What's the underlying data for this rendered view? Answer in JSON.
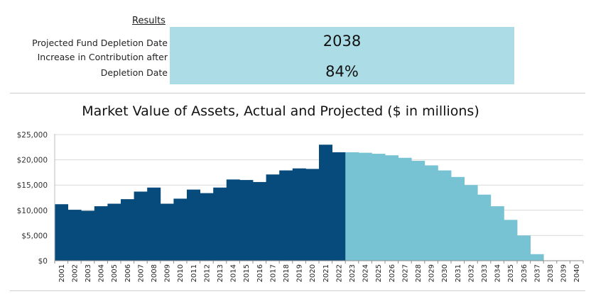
{
  "results": {
    "title": "Results",
    "label_depletion": "Projected Fund Depletion Date",
    "label_increase_line1": "Increase in Contribution after",
    "label_increase_line2": "Depletion Date",
    "depletion_date": "2038",
    "increase_pct": "84%",
    "box_color": "#acdde6"
  },
  "chart_data": {
    "type": "bar",
    "title": "Market Value of Assets, Actual and Projected ($ in millions)",
    "xlabel": "",
    "ylabel": "",
    "ylim": [
      0,
      25000
    ],
    "yticks": [
      "$0",
      "$5,000",
      "$10,000",
      "$15,000",
      "$20,000",
      "$25,000"
    ],
    "grid": true,
    "categories": [
      "2001",
      "2002",
      "2003",
      "2004",
      "2005",
      "2006",
      "2007",
      "2008",
      "2009",
      "2010",
      "2011",
      "2012",
      "2013",
      "2014",
      "2015",
      "2016",
      "2017",
      "2018",
      "2019",
      "2020",
      "2021",
      "2022",
      "2023",
      "2024",
      "2025",
      "2026",
      "2027",
      "2028",
      "2029",
      "2030",
      "2031",
      "2032",
      "2033",
      "2034",
      "2035",
      "2036",
      "2037",
      "2038",
      "2039",
      "2040"
    ],
    "series": [
      {
        "color": "#064b7b",
        "values": [
          11200,
          10100,
          9900,
          10800,
          11300,
          12200,
          13700,
          14500,
          11300,
          12300,
          14100,
          13400,
          14500,
          16100,
          16000,
          15600,
          17100,
          17900,
          18300,
          18200,
          23000,
          21500,
          null,
          null,
          null,
          null,
          null,
          null,
          null,
          null,
          null,
          null,
          null,
          null,
          null,
          null,
          null,
          null,
          null,
          null
        ]
      },
      {
        "color": "#77c3d4",
        "values": [
          null,
          null,
          null,
          null,
          null,
          null,
          null,
          null,
          null,
          null,
          null,
          null,
          null,
          null,
          null,
          null,
          null,
          null,
          null,
          null,
          null,
          null,
          21500,
          21400,
          21200,
          20900,
          20400,
          19800,
          18900,
          17900,
          16600,
          15000,
          13100,
          10800,
          8100,
          5000,
          1300,
          0,
          0,
          0
        ]
      }
    ]
  }
}
